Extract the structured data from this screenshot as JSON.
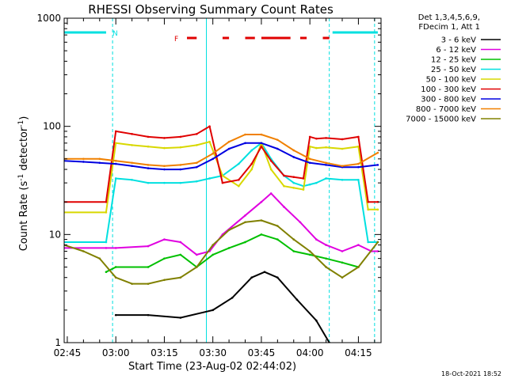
{
  "chart_data": {
    "type": "line",
    "title": "RHESSI Observing Summary Count Rates",
    "xlabel": "Start Time (23-Aug-02 02:44:02)",
    "ylabel": "Count Rate (s⁻¹ detector⁻¹)",
    "y_scale": "log",
    "ylim": [
      1,
      1000
    ],
    "xlim": [
      "02:44:02",
      "04:22:00"
    ],
    "x_ticks": [
      "02:45",
      "03:00",
      "03:15",
      "03:30",
      "03:45",
      "04:00",
      "04:15"
    ],
    "y_ticks": [
      "1",
      "10",
      "100",
      "1000"
    ],
    "grid": false,
    "legend_position": "right",
    "legend_header": [
      "Det 1,3,4,5,6,9,",
      "FDecim 1, Att 1"
    ],
    "footer": "18-Oct-2021 18:52",
    "series": [
      {
        "name": "3 - 6 keV",
        "color": "#000000",
        "x": [
          "03:00",
          "03:10",
          "03:20",
          "03:30",
          "03:36",
          "03:42",
          "03:46",
          "03:50",
          "03:56",
          "04:02",
          "04:06"
        ],
        "values": [
          1.8,
          1.8,
          1.7,
          2.0,
          2.6,
          4.0,
          4.5,
          4.0,
          2.5,
          1.6,
          1.0
        ]
      },
      {
        "name": "6 - 12 keV",
        "color": "#e000e0",
        "x": [
          "02:44",
          "02:57",
          "03:00",
          "03:10",
          "03:15",
          "03:20",
          "03:25",
          "03:29",
          "03:33",
          "03:40",
          "03:45",
          "03:48",
          "03:52",
          "03:57",
          "04:02",
          "04:05",
          "04:10",
          "04:15",
          "04:19",
          "04:21"
        ],
        "values": [
          7.5,
          7.5,
          7.5,
          7.8,
          9.0,
          8.5,
          6.5,
          7.0,
          10,
          15,
          20,
          24,
          18,
          13,
          9,
          8,
          7,
          8,
          7,
          7
        ]
      },
      {
        "name": "12 - 25 keV",
        "color": "#00c000",
        "x": [
          "02:57",
          "03:00",
          "03:10",
          "03:15",
          "03:20",
          "03:25",
          "03:30",
          "03:35",
          "03:40",
          "03:45",
          "03:50",
          "03:55",
          "04:00",
          "04:05",
          "04:10",
          "04:15"
        ],
        "values": [
          4.5,
          5.0,
          5.0,
          6.0,
          6.5,
          5.0,
          6.5,
          7.5,
          8.5,
          10,
          9.0,
          7.0,
          6.5,
          6.0,
          5.5,
          5.0
        ]
      },
      {
        "name": "25 - 50 keV",
        "color": "#00e0e0",
        "x": [
          "02:44",
          "02:57",
          "03:00",
          "03:05",
          "03:10",
          "03:15",
          "03:20",
          "03:25",
          "03:29",
          "03:33",
          "03:38",
          "03:42",
          "03:45",
          "03:48",
          "03:52",
          "03:55",
          "03:58",
          "04:00",
          "04:02",
          "04:05",
          "04:10",
          "04:15",
          "04:18",
          "04:21"
        ],
        "values": [
          8.5,
          8.5,
          33,
          32,
          30,
          30,
          30,
          31,
          33,
          35,
          45,
          60,
          70,
          50,
          35,
          30,
          28,
          29,
          30,
          33,
          32,
          32,
          8.5,
          8.5
        ]
      },
      {
        "name": "50 - 100 keV",
        "color": "#d8d800",
        "x": [
          "02:44",
          "02:57",
          "03:00",
          "03:05",
          "03:10",
          "03:15",
          "03:20",
          "03:25",
          "03:29",
          "03:33",
          "03:38",
          "03:42",
          "03:45",
          "03:48",
          "03:52",
          "03:55",
          "03:58",
          "04:00",
          "04:02",
          "04:05",
          "04:10",
          "04:15",
          "04:18",
          "04:21"
        ],
        "values": [
          16,
          16,
          70,
          67,
          65,
          63,
          64,
          67,
          72,
          35,
          28,
          40,
          70,
          40,
          28,
          27,
          26,
          65,
          63,
          64,
          62,
          65,
          17,
          17
        ]
      },
      {
        "name": "100 - 300 keV",
        "color": "#e00000",
        "x": [
          "02:44",
          "02:57",
          "03:00",
          "03:05",
          "03:10",
          "03:15",
          "03:20",
          "03:25",
          "03:29",
          "03:33",
          "03:38",
          "03:42",
          "03:45",
          "03:48",
          "03:52",
          "03:55",
          "03:58",
          "04:00",
          "04:02",
          "04:05",
          "04:10",
          "04:15",
          "04:18",
          "04:21"
        ],
        "values": [
          20,
          20,
          90,
          85,
          80,
          78,
          80,
          85,
          100,
          30,
          32,
          45,
          65,
          48,
          35,
          34,
          33,
          80,
          77,
          78,
          76,
          80,
          20,
          20
        ]
      },
      {
        "name": "300 - 800 keV",
        "color": "#0000e0",
        "x": [
          "02:44",
          "02:50",
          "02:55",
          "03:00",
          "03:05",
          "03:10",
          "03:15",
          "03:20",
          "03:25",
          "03:30",
          "03:35",
          "03:40",
          "03:45",
          "03:50",
          "03:55",
          "04:00",
          "04:05",
          "04:10",
          "04:15",
          "04:21"
        ],
        "values": [
          48,
          47,
          46,
          45,
          43,
          41,
          40,
          40,
          42,
          50,
          62,
          70,
          70,
          62,
          52,
          46,
          44,
          42,
          42,
          44
        ]
      },
      {
        "name": "800 - 7000 keV",
        "color": "#f08000",
        "x": [
          "02:44",
          "02:50",
          "02:55",
          "03:00",
          "03:05",
          "03:10",
          "03:15",
          "03:20",
          "03:25",
          "03:30",
          "03:35",
          "03:40",
          "03:45",
          "03:50",
          "03:55",
          "04:00",
          "04:05",
          "04:10",
          "04:15",
          "04:21"
        ],
        "values": [
          50,
          50,
          50,
          48,
          46,
          44,
          43,
          44,
          46,
          56,
          72,
          84,
          84,
          75,
          60,
          50,
          46,
          43,
          45,
          57
        ]
      },
      {
        "name": "7000 - 15000 keV",
        "color": "#808000",
        "x": [
          "02:44",
          "02:50",
          "02:55",
          "03:00",
          "03:05",
          "03:10",
          "03:15",
          "03:20",
          "03:25",
          "03:30",
          "03:35",
          "03:40",
          "03:45",
          "03:50",
          "03:55",
          "04:00",
          "04:05",
          "04:10",
          "04:15",
          "04:21"
        ],
        "values": [
          8.0,
          7.0,
          6.0,
          4.0,
          3.5,
          3.5,
          3.8,
          4.0,
          5.0,
          8.0,
          11,
          13,
          13.5,
          12,
          9.0,
          7.0,
          5.0,
          4.0,
          5.0,
          8.5
        ]
      }
    ],
    "annotations": {
      "flags": [
        {
          "label": "N",
          "color": "#00e0e0",
          "segments": [
            [
              "02:44",
              "02:57"
            ],
            [
              "04:07",
              "04:21"
            ]
          ]
        },
        {
          "label": "F",
          "color": "#e00000",
          "segments": [
            [
              "03:22",
              "03:25"
            ],
            [
              "03:33",
              "03:35"
            ],
            [
              "03:40",
              "03:43"
            ],
            [
              "03:45",
              "03:54"
            ],
            [
              "03:57",
              "03:59"
            ],
            [
              "04:04",
              "04:06"
            ]
          ]
        }
      ],
      "attenuator_lines": [
        {
          "color": "#00e0e0",
          "style": "dashed",
          "x": [
            "02:59",
            "04:06",
            "04:20"
          ]
        },
        {
          "color": "#00e0e0",
          "style": "solid",
          "x": [
            "03:28"
          ]
        }
      ]
    }
  }
}
